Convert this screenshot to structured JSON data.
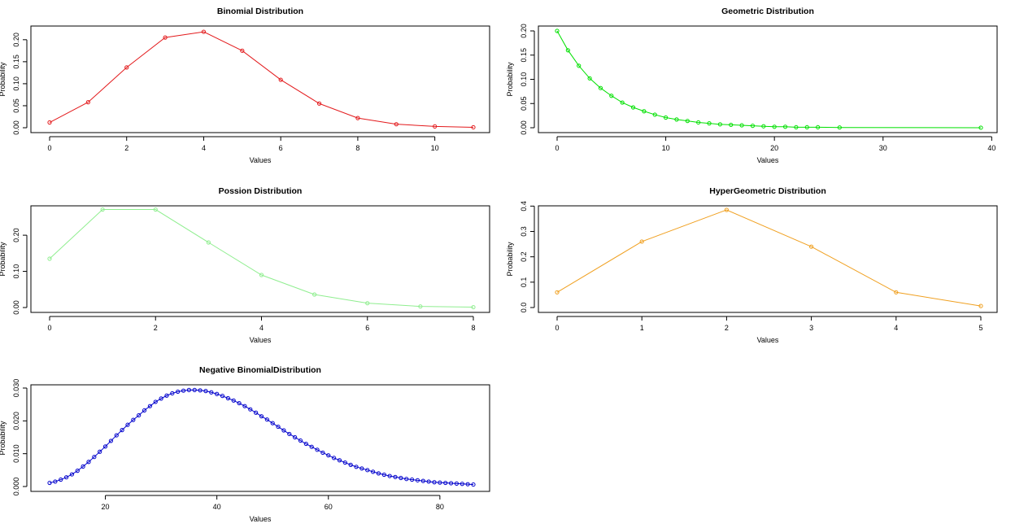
{
  "chart_data": [
    {
      "id": "binomial",
      "type": "line",
      "title": "Binomial Distribution",
      "xlabel": "Values",
      "ylabel": "Probability",
      "color": "#e31a1c",
      "xlim": [
        0,
        11
      ],
      "ylim": [
        0,
        0.22
      ],
      "xticks": [
        0,
        2,
        4,
        6,
        8,
        10
      ],
      "xtick_labels": [
        "0",
        "2",
        "4",
        "6",
        "8",
        "10"
      ],
      "yticks": [
        0,
        0.05,
        0.1,
        0.15,
        0.2
      ],
      "ytick_labels": [
        "0.00",
        "0.05",
        "0.10",
        "0.15",
        "0.20"
      ],
      "grid": false,
      "series": [
        {
          "x": [
            0,
            1,
            2,
            3,
            4,
            5,
            6,
            7,
            8,
            9,
            10,
            11
          ],
          "values": [
            0.012,
            0.058,
            0.137,
            0.205,
            0.218,
            0.175,
            0.109,
            0.055,
            0.022,
            0.008,
            0.003,
            0.001
          ]
        }
      ]
    },
    {
      "id": "geometric",
      "type": "line",
      "title": "Geometric Distribution",
      "xlabel": "Values",
      "ylabel": "Probability",
      "color": "#00e000",
      "xlim": [
        0,
        39
      ],
      "ylim": [
        0,
        0.2
      ],
      "xticks": [
        0,
        10,
        20,
        30,
        40
      ],
      "xtick_labels": [
        "0",
        "10",
        "20",
        "30",
        "40"
      ],
      "yticks": [
        0,
        0.05,
        0.1,
        0.15,
        0.2
      ],
      "ytick_labels": [
        "0.00",
        "0.05",
        "0.10",
        "0.15",
        "0.20"
      ],
      "grid": false,
      "series": [
        {
          "x": [
            0,
            1,
            2,
            3,
            4,
            5,
            6,
            7,
            8,
            9,
            10,
            11,
            12,
            13,
            14,
            15,
            16,
            17,
            18,
            19,
            20,
            21,
            22,
            23,
            24,
            26,
            39
          ],
          "values": [
            0.2,
            0.16,
            0.128,
            0.102,
            0.082,
            0.066,
            0.052,
            0.042,
            0.034,
            0.027,
            0.021,
            0.017,
            0.014,
            0.011,
            0.009,
            0.007,
            0.006,
            0.005,
            0.004,
            0.003,
            0.002,
            0.002,
            0.001,
            0.001,
            0.001,
            0.0005,
            0.0001
          ]
        }
      ]
    },
    {
      "id": "poisson",
      "type": "line",
      "title": "Possion Distribution",
      "xlabel": "Values",
      "ylabel": "Probability",
      "color": "#90ee90",
      "xlim": [
        0,
        8
      ],
      "ylim": [
        0,
        0.27
      ],
      "xticks": [
        0,
        2,
        4,
        6,
        8
      ],
      "xtick_labels": [
        "0",
        "2",
        "4",
        "6",
        "8"
      ],
      "yticks": [
        0,
        0.1,
        0.2
      ],
      "ytick_labels": [
        "0.00",
        "0.10",
        "0.20"
      ],
      "grid": false,
      "series": [
        {
          "x": [
            0,
            1,
            2,
            3,
            4,
            5,
            6,
            7,
            8
          ],
          "values": [
            0.135,
            0.271,
            0.271,
            0.18,
            0.09,
            0.036,
            0.012,
            0.003,
            0.001
          ]
        }
      ]
    },
    {
      "id": "hypergeometric",
      "type": "line",
      "title": "HyperGeometric Distribution",
      "xlabel": "Values",
      "ylabel": "Probability",
      "color": "#f0a020",
      "xlim": [
        0,
        5
      ],
      "ylim": [
        0,
        0.385
      ],
      "xticks": [
        0,
        1,
        2,
        3,
        4,
        5
      ],
      "xtick_labels": [
        "0",
        "1",
        "2",
        "3",
        "4",
        "5"
      ],
      "yticks": [
        0,
        0.1,
        0.2,
        0.3,
        0.4
      ],
      "ytick_labels": [
        "0.0",
        "0.1",
        "0.2",
        "0.3",
        "0.4"
      ],
      "grid": false,
      "series": [
        {
          "x": [
            0,
            1,
            2,
            3,
            4,
            5
          ],
          "values": [
            0.06,
            0.26,
            0.385,
            0.24,
            0.06,
            0.006
          ]
        }
      ]
    },
    {
      "id": "negbinomial",
      "type": "line",
      "title": "Negative BinomialDistribution",
      "xlabel": "Values",
      "ylabel": "Probability",
      "color": "#0000cc",
      "xlim": [
        10,
        86
      ],
      "ylim": [
        0,
        0.0295
      ],
      "xticks": [
        20,
        40,
        60,
        80
      ],
      "xtick_labels": [
        "20",
        "40",
        "60",
        "80"
      ],
      "yticks": [
        0,
        0.01,
        0.02,
        0.03
      ],
      "ytick_labels": [
        "0.000",
        "0.010",
        "0.020",
        "0.030"
      ],
      "grid": false,
      "series": [
        {
          "x": [
            10,
            11,
            12,
            13,
            14,
            15,
            16,
            17,
            18,
            19,
            20,
            21,
            22,
            23,
            24,
            25,
            26,
            27,
            28,
            29,
            30,
            31,
            32,
            33,
            34,
            35,
            36,
            37,
            38,
            39,
            40,
            41,
            42,
            43,
            44,
            45,
            46,
            47,
            48,
            49,
            50,
            51,
            52,
            53,
            54,
            55,
            56,
            57,
            58,
            59,
            60,
            61,
            62,
            63,
            64,
            65,
            66,
            67,
            68,
            69,
            70,
            71,
            72,
            73,
            74,
            75,
            76,
            77,
            78,
            79,
            80,
            81,
            82,
            83,
            84,
            85,
            86
          ],
          "values": [
            0.0011,
            0.0015,
            0.0021,
            0.0028,
            0.0037,
            0.0048,
            0.0061,
            0.0075,
            0.009,
            0.0106,
            0.0122,
            0.0139,
            0.0156,
            0.0172,
            0.0188,
            0.0203,
            0.0217,
            0.0232,
            0.0245,
            0.0258,
            0.0268,
            0.0277,
            0.0284,
            0.0289,
            0.0292,
            0.0294,
            0.0294,
            0.0293,
            0.0291,
            0.0287,
            0.0282,
            0.0276,
            0.0269,
            0.0262,
            0.0254,
            0.0245,
            0.0235,
            0.0225,
            0.0214,
            0.0204,
            0.0193,
            0.0182,
            0.0171,
            0.016,
            0.015,
            0.014,
            0.013,
            0.0121,
            0.0112,
            0.0103,
            0.0095,
            0.0087,
            0.008,
            0.0073,
            0.0066,
            0.006,
            0.0055,
            0.005,
            0.0045,
            0.004,
            0.0036,
            0.0032,
            0.0029,
            0.0026,
            0.0023,
            0.0021,
            0.0019,
            0.0017,
            0.0015,
            0.0013,
            0.0012,
            0.0011,
            0.001,
            0.0009,
            0.0008,
            0.0007,
            0.0006
          ]
        }
      ]
    }
  ]
}
